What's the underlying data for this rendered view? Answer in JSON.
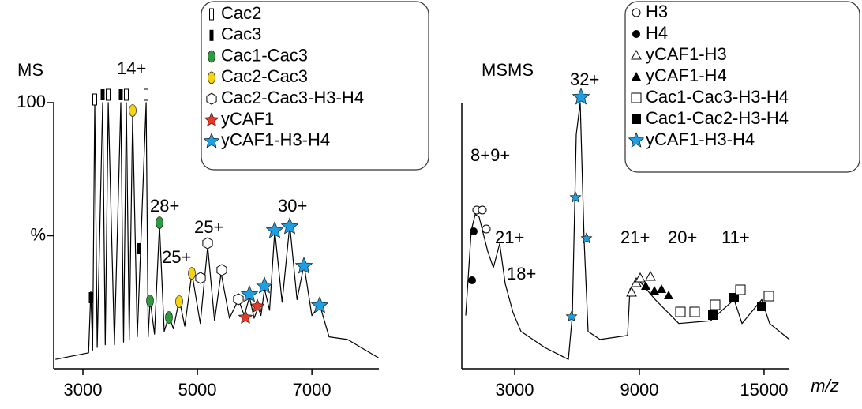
{
  "chart_data": [
    {
      "type": "line",
      "title": "MS",
      "color": "#000000",
      "x": [
        2520,
        3100,
        3138,
        3170,
        3207,
        3250,
        3345,
        3390,
        3442,
        3550,
        3662,
        3710,
        3759,
        3810,
        3869,
        3950,
        4104,
        4140,
        4173,
        4250,
        4338,
        4420,
        4504,
        4580,
        4683,
        4780,
        4904,
        5050,
        5180,
        5300,
        5414,
        5560,
        5718,
        5820,
        5911,
        5990,
        6062,
        6110,
        6173,
        6260,
        6352,
        6480,
        6614,
        6740,
        6862,
        7000,
        7138,
        7300,
        7621,
        8170
      ],
      "values": [
        3.5,
        6,
        29,
        7,
        100,
        8,
        100,
        9,
        100,
        9,
        100,
        10,
        100,
        11,
        95,
        12,
        100,
        12,
        26,
        13,
        54,
        14,
        20,
        15,
        26,
        16,
        36,
        17,
        46,
        18,
        36,
        19,
        26,
        20,
        27,
        19,
        23,
        20,
        30,
        22,
        52,
        25,
        54,
        26,
        39,
        20,
        24,
        12,
        11,
        4
      ],
      "xlim": [
        2490,
        8170
      ],
      "ylim": [
        0,
        100
      ],
      "xticks": [
        3000,
        5000,
        7000
      ],
      "yticks": [
        {
          "value": 50,
          "label": "%"
        },
        100
      ],
      "legend": [
        "Cac2",
        "Cac3",
        "Cac1-Cac3",
        "Cac2-Cac3",
        "Cac2-Cac3-H3-H4",
        "yCAF1",
        "yCAF1-H3-H4"
      ],
      "annotations": [
        "14+",
        "28+",
        "25+",
        "25+",
        "30+"
      ]
    },
    {
      "type": "line",
      "title": "MSMS",
      "x_label": "m/z",
      "color": "#000000",
      "x": [
        645,
        911,
        1101,
        1291,
        1480,
        1708,
        1974,
        2278,
        2544,
        2924,
        3303,
        4443,
        5582,
        5772,
        5962,
        6152,
        6342,
        6532,
        7102,
        8431,
        8545,
        9000,
        9760,
        10899,
        12418,
        13558,
        13938,
        14887,
        15267,
        16217
      ],
      "values": [
        20,
        52,
        58,
        57,
        51,
        44,
        38,
        47,
        32,
        21,
        14,
        8,
        3.5,
        20,
        88,
        100,
        48,
        14,
        11,
        12.5,
        30,
        33,
        26,
        17,
        18,
        26,
        17,
        26,
        17,
        11
      ],
      "xlim": [
        455,
        16217
      ],
      "ylim": [
        0,
        100
      ],
      "xticks": [
        3000,
        9000,
        15000
      ],
      "legend": [
        "H3",
        "H4",
        "yCAF1-H3",
        "yCAF1-H4",
        "Cac1-Cac3-H3-H4",
        "Cac1-Cac2-H3-H4",
        "yCAF1-H3-H4"
      ],
      "annotations": [
        "32+",
        "8+9+",
        "21+",
        "18+",
        "21+",
        "20+",
        "11+"
      ]
    }
  ]
}
